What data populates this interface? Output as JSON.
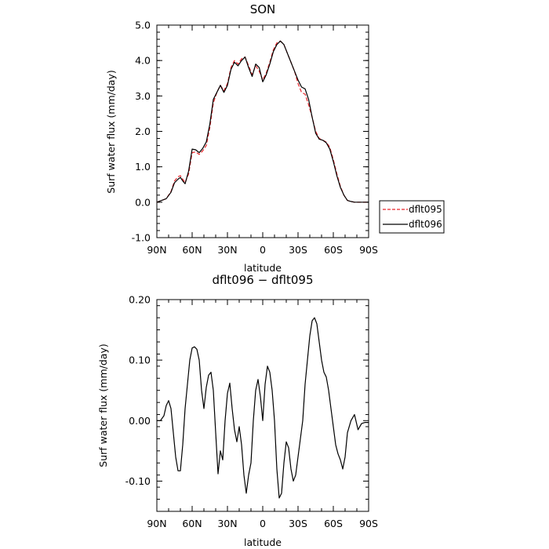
{
  "chart_data": [
    {
      "type": "line",
      "title": "SON",
      "xlabel": "latitude",
      "ylabel": "Surf water flux (mm/day)",
      "x_ticks": [
        "90N",
        "60N",
        "30N",
        "0",
        "30S",
        "60S",
        "90S"
      ],
      "y_ticks": [
        "-1.0",
        "0.0",
        "1.0",
        "2.0",
        "3.0",
        "4.0",
        "5.0"
      ],
      "xlim": [
        90,
        -90
      ],
      "ylim": [
        -1.0,
        5.0
      ],
      "legend": {
        "placement": "right",
        "entries": [
          "dflt095",
          "dflt096"
        ]
      },
      "series": [
        {
          "name": "dflt095",
          "color": "#e8262b",
          "dash": "dashed",
          "x": [
            90,
            86,
            82,
            78,
            75,
            72,
            70,
            68,
            66,
            63,
            60,
            57,
            54,
            51,
            48,
            45,
            42,
            39,
            36,
            33,
            30,
            27,
            24,
            21,
            18,
            15,
            12,
            9,
            6,
            3,
            0,
            -3,
            -6,
            -9,
            -12,
            -15,
            -18,
            -21,
            -24,
            -27,
            -30,
            -33,
            -36,
            -39,
            -42,
            -45,
            -48,
            -51,
            -54,
            -57,
            -60,
            -63,
            -66,
            -69,
            -72,
            -75,
            -78,
            -81,
            -84,
            -87,
            -90
          ],
          "y": [
            0.0,
            0.05,
            0.1,
            0.3,
            0.6,
            0.72,
            0.75,
            0.65,
            0.55,
            0.8,
            1.4,
            1.42,
            1.35,
            1.45,
            1.6,
            2.1,
            2.8,
            3.1,
            3.3,
            3.15,
            3.35,
            3.8,
            4.0,
            3.9,
            4.05,
            4.1,
            3.85,
            3.6,
            3.85,
            3.7,
            3.45,
            3.65,
            3.95,
            4.3,
            4.5,
            4.55,
            4.45,
            4.2,
            3.95,
            3.7,
            3.35,
            3.1,
            3.05,
            2.75,
            2.4,
            2.0,
            1.8,
            1.75,
            1.7,
            1.55,
            1.2,
            0.8,
            0.45,
            0.2,
            0.05,
            0.02,
            0.0,
            0.0,
            0.0,
            0.0,
            0.0
          ]
        },
        {
          "name": "dflt096",
          "color": "#000000",
          "dash": "solid",
          "x": [
            90,
            86,
            82,
            78,
            75,
            72,
            70,
            68,
            66,
            63,
            60,
            57,
            54,
            51,
            48,
            45,
            42,
            39,
            36,
            33,
            30,
            27,
            24,
            21,
            18,
            15,
            12,
            9,
            6,
            3,
            0,
            -3,
            -6,
            -9,
            -12,
            -15,
            -18,
            -21,
            -24,
            -27,
            -30,
            -33,
            -36,
            -39,
            -42,
            -45,
            -48,
            -51,
            -54,
            -57,
            -60,
            -63,
            -66,
            -69,
            -72,
            -75,
            -78,
            -81,
            -84,
            -87,
            -90
          ],
          "y": [
            0.0,
            0.05,
            0.1,
            0.28,
            0.55,
            0.65,
            0.7,
            0.6,
            0.52,
            0.88,
            1.5,
            1.48,
            1.4,
            1.52,
            1.7,
            2.2,
            2.9,
            3.1,
            3.3,
            3.1,
            3.3,
            3.75,
            3.95,
            3.85,
            4.0,
            4.1,
            3.8,
            3.55,
            3.9,
            3.8,
            3.4,
            3.6,
            3.9,
            4.25,
            4.45,
            4.55,
            4.45,
            4.2,
            3.95,
            3.7,
            3.45,
            3.25,
            3.2,
            2.9,
            2.4,
            1.95,
            1.78,
            1.75,
            1.68,
            1.5,
            1.15,
            0.75,
            0.42,
            0.2,
            0.05,
            0.02,
            0.0,
            0.0,
            0.0,
            0.0,
            0.0
          ]
        }
      ]
    },
    {
      "type": "line",
      "title": "dflt096 − dflt095",
      "xlabel": "latitude",
      "ylabel": "Surf water flux (mm/day)",
      "x_ticks": [
        "90N",
        "60N",
        "30N",
        "0",
        "30S",
        "60S",
        "90S"
      ],
      "y_ticks": [
        "-0.10",
        "0.00",
        "0.10",
        "0.20"
      ],
      "xlim": [
        90,
        -90
      ],
      "ylim": [
        -0.15,
        0.2
      ],
      "series": [
        {
          "name": "",
          "color": "#000000",
          "dash": "solid",
          "x": [
            90,
            87,
            84,
            82,
            80,
            78,
            76,
            74,
            72,
            70,
            68,
            66,
            64,
            62,
            60,
            58,
            56,
            54,
            52,
            50,
            48,
            46,
            44,
            42,
            40,
            38,
            36,
            34,
            32,
            30,
            28,
            26,
            24,
            22,
            20,
            18,
            16,
            14,
            12,
            10,
            8,
            6,
            4,
            2,
            0,
            -2,
            -4,
            -6,
            -8,
            -10,
            -12,
            -14,
            -16,
            -18,
            -20,
            -22,
            -24,
            -26,
            -28,
            -30,
            -32,
            -34,
            -36,
            -38,
            -40,
            -42,
            -44,
            -46,
            -48,
            -50,
            -52,
            -54,
            -56,
            -58,
            -60,
            -62,
            -64,
            -66,
            -68,
            -70,
            -72,
            -75,
            -78,
            -81,
            -84,
            -87,
            -90
          ],
          "y": [
            0.0,
            0.0,
            0.008,
            0.025,
            0.033,
            0.02,
            -0.02,
            -0.06,
            -0.083,
            -0.083,
            -0.04,
            0.02,
            0.06,
            0.1,
            0.12,
            0.122,
            0.118,
            0.1,
            0.05,
            0.02,
            0.055,
            0.075,
            0.08,
            0.05,
            -0.02,
            -0.088,
            -0.05,
            -0.065,
            0.0,
            0.045,
            0.062,
            0.02,
            -0.015,
            -0.035,
            -0.01,
            -0.04,
            -0.09,
            -0.12,
            -0.09,
            -0.07,
            0.0,
            0.05,
            0.068,
            0.04,
            0.0,
            0.06,
            0.09,
            0.08,
            0.05,
            0.0,
            -0.08,
            -0.128,
            -0.12,
            -0.07,
            -0.035,
            -0.045,
            -0.08,
            -0.1,
            -0.09,
            -0.06,
            -0.03,
            0.0,
            0.06,
            0.1,
            0.14,
            0.165,
            0.17,
            0.16,
            0.13,
            0.1,
            0.08,
            0.072,
            0.05,
            0.02,
            -0.01,
            -0.04,
            -0.055,
            -0.065,
            -0.08,
            -0.06,
            -0.02,
            0.0,
            0.01,
            -0.015,
            -0.005,
            -0.003,
            -0.003
          ]
        }
      ]
    }
  ]
}
